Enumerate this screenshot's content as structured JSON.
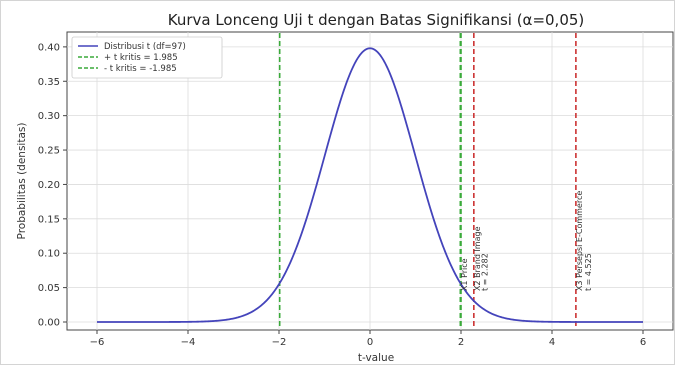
{
  "chart_data": {
    "type": "line",
    "title": "Kurva Lonceng Uji t dengan Batas Signifikansi (α=0,05)",
    "xlabel": "t-value",
    "ylabel": "Probabilitas (densitas)",
    "xlim": [
      -6,
      6
    ],
    "ylim": [
      0,
      0.41
    ],
    "xticks": [
      -6,
      -4,
      -2,
      0,
      2,
      4,
      6
    ],
    "xtick_labels": [
      "−6",
      "−4",
      "−2",
      "0",
      "2",
      "4",
      "6"
    ],
    "yticks": [
      0.0,
      0.05,
      0.1,
      0.15,
      0.2,
      0.25,
      0.3,
      0.35,
      0.4
    ],
    "ytick_labels": [
      "0.00",
      "0.05",
      "0.10",
      "0.15",
      "0.20",
      "0.25",
      "0.30",
      "0.35",
      "0.40"
    ],
    "grid": true,
    "legend_position": "top-left",
    "series": [
      {
        "name": "Distribusi t (df=97)",
        "color": "#4444bb",
        "style": "solid",
        "df": 97,
        "x": [
          -6,
          -5,
          -4.5,
          -4,
          -3.5,
          -3,
          -2.5,
          -2,
          -1.5,
          -1,
          -0.5,
          0,
          0.5,
          1,
          1.5,
          2,
          2.5,
          3,
          3.5,
          4,
          4.5,
          5,
          6
        ],
        "y": [
          0.0,
          0.0,
          0.0,
          0.0,
          0.001,
          0.005,
          0.018,
          0.054,
          0.129,
          0.24,
          0.351,
          0.397,
          0.351,
          0.24,
          0.129,
          0.054,
          0.018,
          0.005,
          0.001,
          0.0,
          0.0,
          0.0,
          0.0
        ]
      }
    ],
    "reference_lines": [
      {
        "name": "+ t kritis = 1.985",
        "x": 1.985,
        "color": "#3aaa3a",
        "style": "dashed",
        "in_legend": true
      },
      {
        "name": "- t kritis = -1.985",
        "x": -1.985,
        "color": "#3aaa3a",
        "style": "dashed",
        "in_legend": true
      },
      {
        "name": "",
        "x": 2.0,
        "color": "#3aaa3a",
        "style": "dashed",
        "in_legend": false
      },
      {
        "name": "",
        "x": 2.282,
        "color": "#cc3333",
        "style": "dashed",
        "in_legend": false
      },
      {
        "name": "",
        "x": 4.525,
        "color": "#cc3333",
        "style": "dashed",
        "in_legend": false
      }
    ],
    "annotations": [
      {
        "x": 2.0,
        "text": "X1 Price"
      },
      {
        "x": 2.282,
        "text": "X2 Brand Image"
      },
      {
        "x": 2.45,
        "text": "t = 2.282"
      },
      {
        "x": 4.525,
        "text": "X3 Persepsi E-Commerce"
      },
      {
        "x": 4.72,
        "text": "t = 4.525"
      }
    ]
  }
}
